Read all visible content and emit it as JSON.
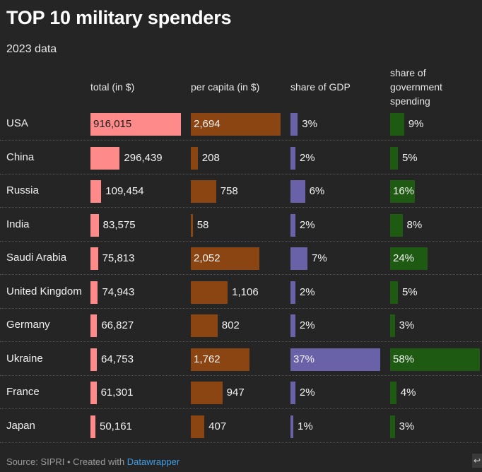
{
  "header": {
    "title": "TOP 10 military spenders",
    "subtitle": "2023 data"
  },
  "columns": {
    "total": "total (in $)",
    "per_capita": "per capita (in $)",
    "gdp": "share of GDP",
    "gov": "share of government spending"
  },
  "colors": {
    "total": "#ff8a8a",
    "per_capita": "#8b4513",
    "gdp": "#6a62a8",
    "gov": "#1e5a12"
  },
  "chart_data": {
    "type": "table",
    "title": "TOP 10 military spenders",
    "subtitle": "2023 data",
    "columns": [
      "total (in $)",
      "per capita (in $)",
      "share of GDP",
      "share of government spending"
    ],
    "rows": [
      {
        "country": "USA",
        "total": 916015,
        "total_label": "916,015",
        "per_capita": 2694,
        "per_capita_label": "2,694",
        "gdp": 3,
        "gdp_label": "3%",
        "gov": 9,
        "gov_label": "9%"
      },
      {
        "country": "China",
        "total": 296439,
        "total_label": "296,439",
        "per_capita": 208,
        "per_capita_label": "208",
        "gdp": 2,
        "gdp_label": "2%",
        "gov": 5,
        "gov_label": "5%"
      },
      {
        "country": "Russia",
        "total": 109454,
        "total_label": "109,454",
        "per_capita": 758,
        "per_capita_label": "758",
        "gdp": 6,
        "gdp_label": "6%",
        "gov": 16,
        "gov_label": "16%"
      },
      {
        "country": "India",
        "total": 83575,
        "total_label": "83,575",
        "per_capita": 58,
        "per_capita_label": "58",
        "gdp": 2,
        "gdp_label": "2%",
        "gov": 8,
        "gov_label": "8%"
      },
      {
        "country": "Saudi Arabia",
        "total": 75813,
        "total_label": "75,813",
        "per_capita": 2052,
        "per_capita_label": "2,052",
        "gdp": 7,
        "gdp_label": "7%",
        "gov": 24,
        "gov_label": "24%"
      },
      {
        "country": "United Kingdom",
        "total": 74943,
        "total_label": "74,943",
        "per_capita": 1106,
        "per_capita_label": "1,106",
        "gdp": 2,
        "gdp_label": "2%",
        "gov": 5,
        "gov_label": "5%"
      },
      {
        "country": "Germany",
        "total": 66827,
        "total_label": "66,827",
        "per_capita": 802,
        "per_capita_label": "802",
        "gdp": 2,
        "gdp_label": "2%",
        "gov": 3,
        "gov_label": "3%"
      },
      {
        "country": "Ukraine",
        "total": 64753,
        "total_label": "64,753",
        "per_capita": 1762,
        "per_capita_label": "1,762",
        "gdp": 37,
        "gdp_label": "37%",
        "gov": 58,
        "gov_label": "58%"
      },
      {
        "country": "France",
        "total": 61301,
        "total_label": "61,301",
        "per_capita": 947,
        "per_capita_label": "947",
        "gdp": 2,
        "gdp_label": "2%",
        "gov": 4,
        "gov_label": "4%"
      },
      {
        "country": "Japan",
        "total": 50161,
        "total_label": "50,161",
        "per_capita": 407,
        "per_capita_label": "407",
        "gdp": 1,
        "gdp_label": "1%",
        "gov": 3,
        "gov_label": "3%"
      }
    ]
  },
  "footer": {
    "source_text": "Source: SIPRI • Created with ",
    "link_text": "Datawrapper",
    "corner_glyph": "↩"
  }
}
